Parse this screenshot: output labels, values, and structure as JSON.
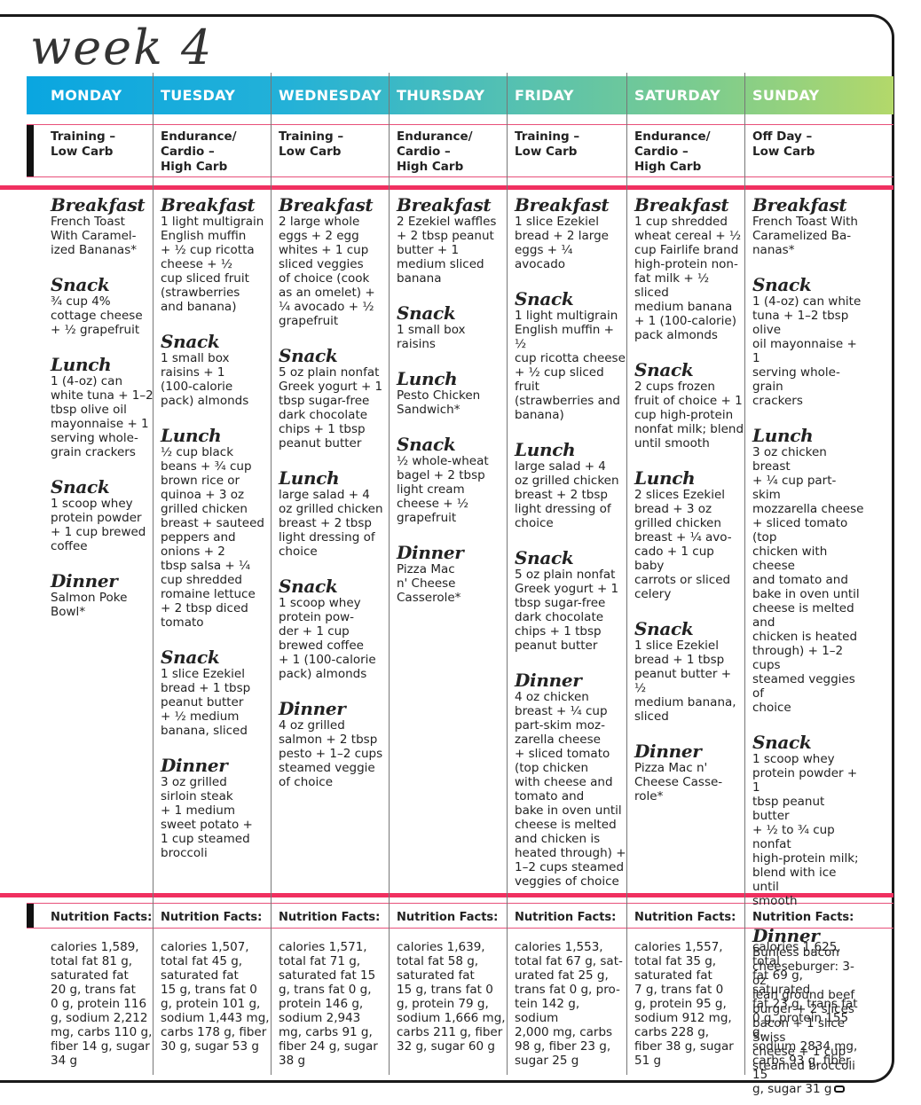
{
  "title": "week 4",
  "days": [
    {
      "name": "MONDAY",
      "type": "Training –\nLow Carb",
      "meals": [
        {
          "name": "Breakfast",
          "desc": "French Toast\nWith Caramel-\nized Bananas*"
        },
        {
          "name": "Snack",
          "desc": "¾ cup 4%\ncottage cheese\n+ ½ grapefruit"
        },
        {
          "name": "Lunch",
          "desc": "1 (4-oz) can\nwhite tuna + 1–2\ntbsp olive oil\nmayonnaise + 1\nserving whole-\ngrain crackers"
        },
        {
          "name": "Snack",
          "desc": "1 scoop whey\nprotein powder\n+ 1 cup brewed\ncoffee"
        },
        {
          "name": "Dinner",
          "desc": "Salmon Poke\nBowl*"
        }
      ],
      "nutrition": "calories 1,589,\ntotal fat 81 g,\nsaturated fat\n20 g, trans fat\n0 g, protein 116\ng, sodium 2,212\nmg, carbs 110 g,\nfiber 14 g, sugar\n34 g"
    },
    {
      "name": "TUESDAY",
      "type": "Endurance/\nCardio –\nHigh Carb",
      "meals": [
        {
          "name": "Breakfast",
          "desc": "1 light multigrain\nEnglish muffin\n+ ½ cup ricotta\ncheese + ½\ncup sliced fruit\n(strawberries\nand banana)"
        },
        {
          "name": "Snack",
          "desc": "1 small box\nraisins + 1\n(100-calorie\npack) almonds"
        },
        {
          "name": "Lunch",
          "desc": "½ cup black\nbeans + ¾ cup\nbrown rice or\nquinoa + 3 oz\ngrilled chicken\nbreast + sauteed\npeppers and\nonions + 2\ntbsp salsa + ¼\ncup shredded\nromaine lettuce\n+ 2 tbsp diced\ntomato"
        },
        {
          "name": "Snack",
          "desc": "1 slice Ezekiel\nbread + 1 tbsp\npeanut butter\n+ ½ medium\nbanana, sliced"
        },
        {
          "name": "Dinner",
          "desc": "3 oz grilled\nsirloin steak\n+ 1 medium\nsweet potato +\n1 cup steamed\nbroccoli"
        }
      ],
      "nutrition": "calories 1,507,\ntotal fat 45 g,\nsaturated fat\n15 g, trans fat 0\ng, protein 101 g,\nsodium 1,443 mg,\ncarbs 178 g, fiber\n30 g, sugar 53 g"
    },
    {
      "name": "WEDNESDAY",
      "type": "Training –\nLow Carb",
      "meals": [
        {
          "name": "Breakfast",
          "desc": "2 large whole\neggs + 2 egg\nwhites + 1 cup\nsliced veggies\nof choice (cook\nas an omelet) +\n¼ avocado + ½\ngrapefruit"
        },
        {
          "name": "Snack",
          "desc": "5 oz plain nonfat\nGreek yogurt + 1\ntbsp sugar-free\ndark chocolate\nchips + 1 tbsp\npeanut butter"
        },
        {
          "name": "Lunch",
          "desc": "large salad + 4\noz grilled chicken\nbreast + 2 tbsp\nlight dressing of\nchoice"
        },
        {
          "name": "Snack",
          "desc": "1 scoop whey\nprotein pow-\nder + 1 cup\nbrewed coffee\n+ 1 (100-calorie\npack) almonds"
        },
        {
          "name": "Dinner",
          "desc": "4 oz grilled\nsalmon + 2 tbsp\npesto + 1–2 cups\nsteamed veggie\nof choice"
        }
      ],
      "nutrition": "calories 1,571,\ntotal fat 71 g,\nsaturated fat 15\ng, trans fat 0 g,\nprotein 146 g,\nsodium 2,943\nmg, carbs 91 g,\nfiber 24 g, sugar\n38 g"
    },
    {
      "name": "THURSDAY",
      "type": "Endurance/\nCardio –\nHigh Carb",
      "meals": [
        {
          "name": "Breakfast",
          "desc": "2 Ezekiel waffles\n+ 2 tbsp peanut\nbutter + 1\nmedium sliced\nbanana"
        },
        {
          "name": "Snack",
          "desc": "1 small box\nraisins"
        },
        {
          "name": "Lunch",
          "desc": "Pesto Chicken\nSandwich*"
        },
        {
          "name": "Snack",
          "desc": "½ whole-wheat\nbagel + 2 tbsp\nlight cream\ncheese + ½\ngrapefruit"
        },
        {
          "name": "Dinner",
          "desc": "Pizza Mac\nn' Cheese\nCasserole*"
        }
      ],
      "nutrition": "calories 1,639,\ntotal fat 58 g,\nsaturated fat\n15 g, trans fat 0\ng, protein 79 g,\nsodium 1,666 mg,\ncarbs 211 g, fiber\n32 g, sugar 60 g"
    },
    {
      "name": "FRIDAY",
      "type": "Training –\nLow Carb",
      "meals": [
        {
          "name": "Breakfast",
          "desc": "1 slice Ezekiel\nbread + 2 large\neggs + ¼ avocado"
        },
        {
          "name": "Snack",
          "desc": "1 light multigrain\nEnglish muffin + ½\ncup ricotta cheese\n+ ½ cup sliced fruit\n(strawberries and\nbanana)"
        },
        {
          "name": "Lunch",
          "desc": "large salad + 4\noz grilled chicken\nbreast + 2 tbsp\nlight dressing of\nchoice"
        },
        {
          "name": "Snack",
          "desc": "5 oz plain nonfat\nGreek yogurt + 1\ntbsp sugar-free\ndark chocolate\nchips + 1 tbsp\npeanut butter"
        },
        {
          "name": "Dinner",
          "desc": "4 oz chicken\nbreast + ¼ cup\npart-skim moz-\nzarella cheese\n+ sliced tomato\n(top chicken\nwith cheese and\ntomato and\nbake in oven until\ncheese is melted\nand chicken is\nheated through) +\n1–2 cups steamed\nveggies of choice"
        }
      ],
      "nutrition": "calories 1,553,\ntotal fat 67 g, sat-\nurated fat 25 g,\ntrans fat 0 g, pro-\ntein 142 g, sodium\n2,000 mg, carbs\n98 g, fiber 23 g,\nsugar 25 g"
    },
    {
      "name": "SATURDAY",
      "type": "Endurance/\nCardio –\nHigh Carb",
      "meals": [
        {
          "name": "Breakfast",
          "desc": "1 cup shredded\nwheat cereal + ½\ncup Fairlife brand\nhigh-protein non-\nfat milk + ½ sliced\nmedium banana\n+ 1 (100-calorie)\npack almonds"
        },
        {
          "name": "Snack",
          "desc": "2 cups frozen\nfruit of choice + 1\ncup high-protein\nnonfat milk; blend\nuntil smooth"
        },
        {
          "name": "Lunch",
          "desc": "2 slices Ezekiel\nbread + 3 oz\ngrilled chicken\nbreast + ¼ avo-\ncado + 1 cup baby\ncarrots or sliced\ncelery"
        },
        {
          "name": "Snack",
          "desc": "1 slice Ezekiel\nbread + 1 tbsp\npeanut butter + ½\nmedium banana,\nsliced"
        },
        {
          "name": "Dinner",
          "desc": "Pizza Mac n'\nCheese Casse-\nrole*"
        }
      ],
      "nutrition": "calories 1,557,\ntotal fat 35 g,\nsaturated fat\n7 g, trans fat 0\ng, protein 95 g,\nsodium 912 mg,\ncarbs 228 g,\nfiber 38 g, sugar\n51 g"
    },
    {
      "name": "SUNDAY",
      "type": "Off Day –\nLow Carb",
      "meals": [
        {
          "name": "Breakfast",
          "desc": "French Toast With\nCaramelized Ba-\nnanas*"
        },
        {
          "name": "Snack",
          "desc": "1 (4-oz) can white\ntuna + 1–2 tbsp olive\noil mayonnaise + 1\nserving whole-grain\ncrackers"
        },
        {
          "name": "Lunch",
          "desc": "3 oz chicken breast\n+ ¼ cup part-skim\nmozzarella cheese\n+ sliced tomato (top\nchicken with cheese\nand tomato and\nbake in oven until\ncheese is melted and\nchicken is heated\nthrough) + 1–2 cups\nsteamed veggies of\nchoice"
        },
        {
          "name": "Snack",
          "desc": "1 scoop whey\nprotein powder + 1\ntbsp peanut butter\n+ ½ to ¾ cup nonfat\nhigh-protein milk;\nblend with ice until\nsmooth"
        },
        {
          "name": "Dinner",
          "desc": "Bunless bacon\ncheeseburger: 3-oz\nlean ground beef\nburger + 2 slices\nbacon + 1 slice Swiss\ncheese + 1 cup\nsteamed broccoli"
        }
      ],
      "nutrition": "calories 1,625, total\nfat 69 g, saturated\nfat 23 g, trans fat\n0 g, protein 155 g,\nsodium 2834 mg,\ncarbs 93 g, fiber 15\ng, sugar 31 g"
    }
  ],
  "nutrition_label": "Nutrition Facts:",
  "colors": {
    "accent_pink": "#f03060",
    "header_start": "#0aa6e0",
    "header_end": "#b3d86a"
  }
}
